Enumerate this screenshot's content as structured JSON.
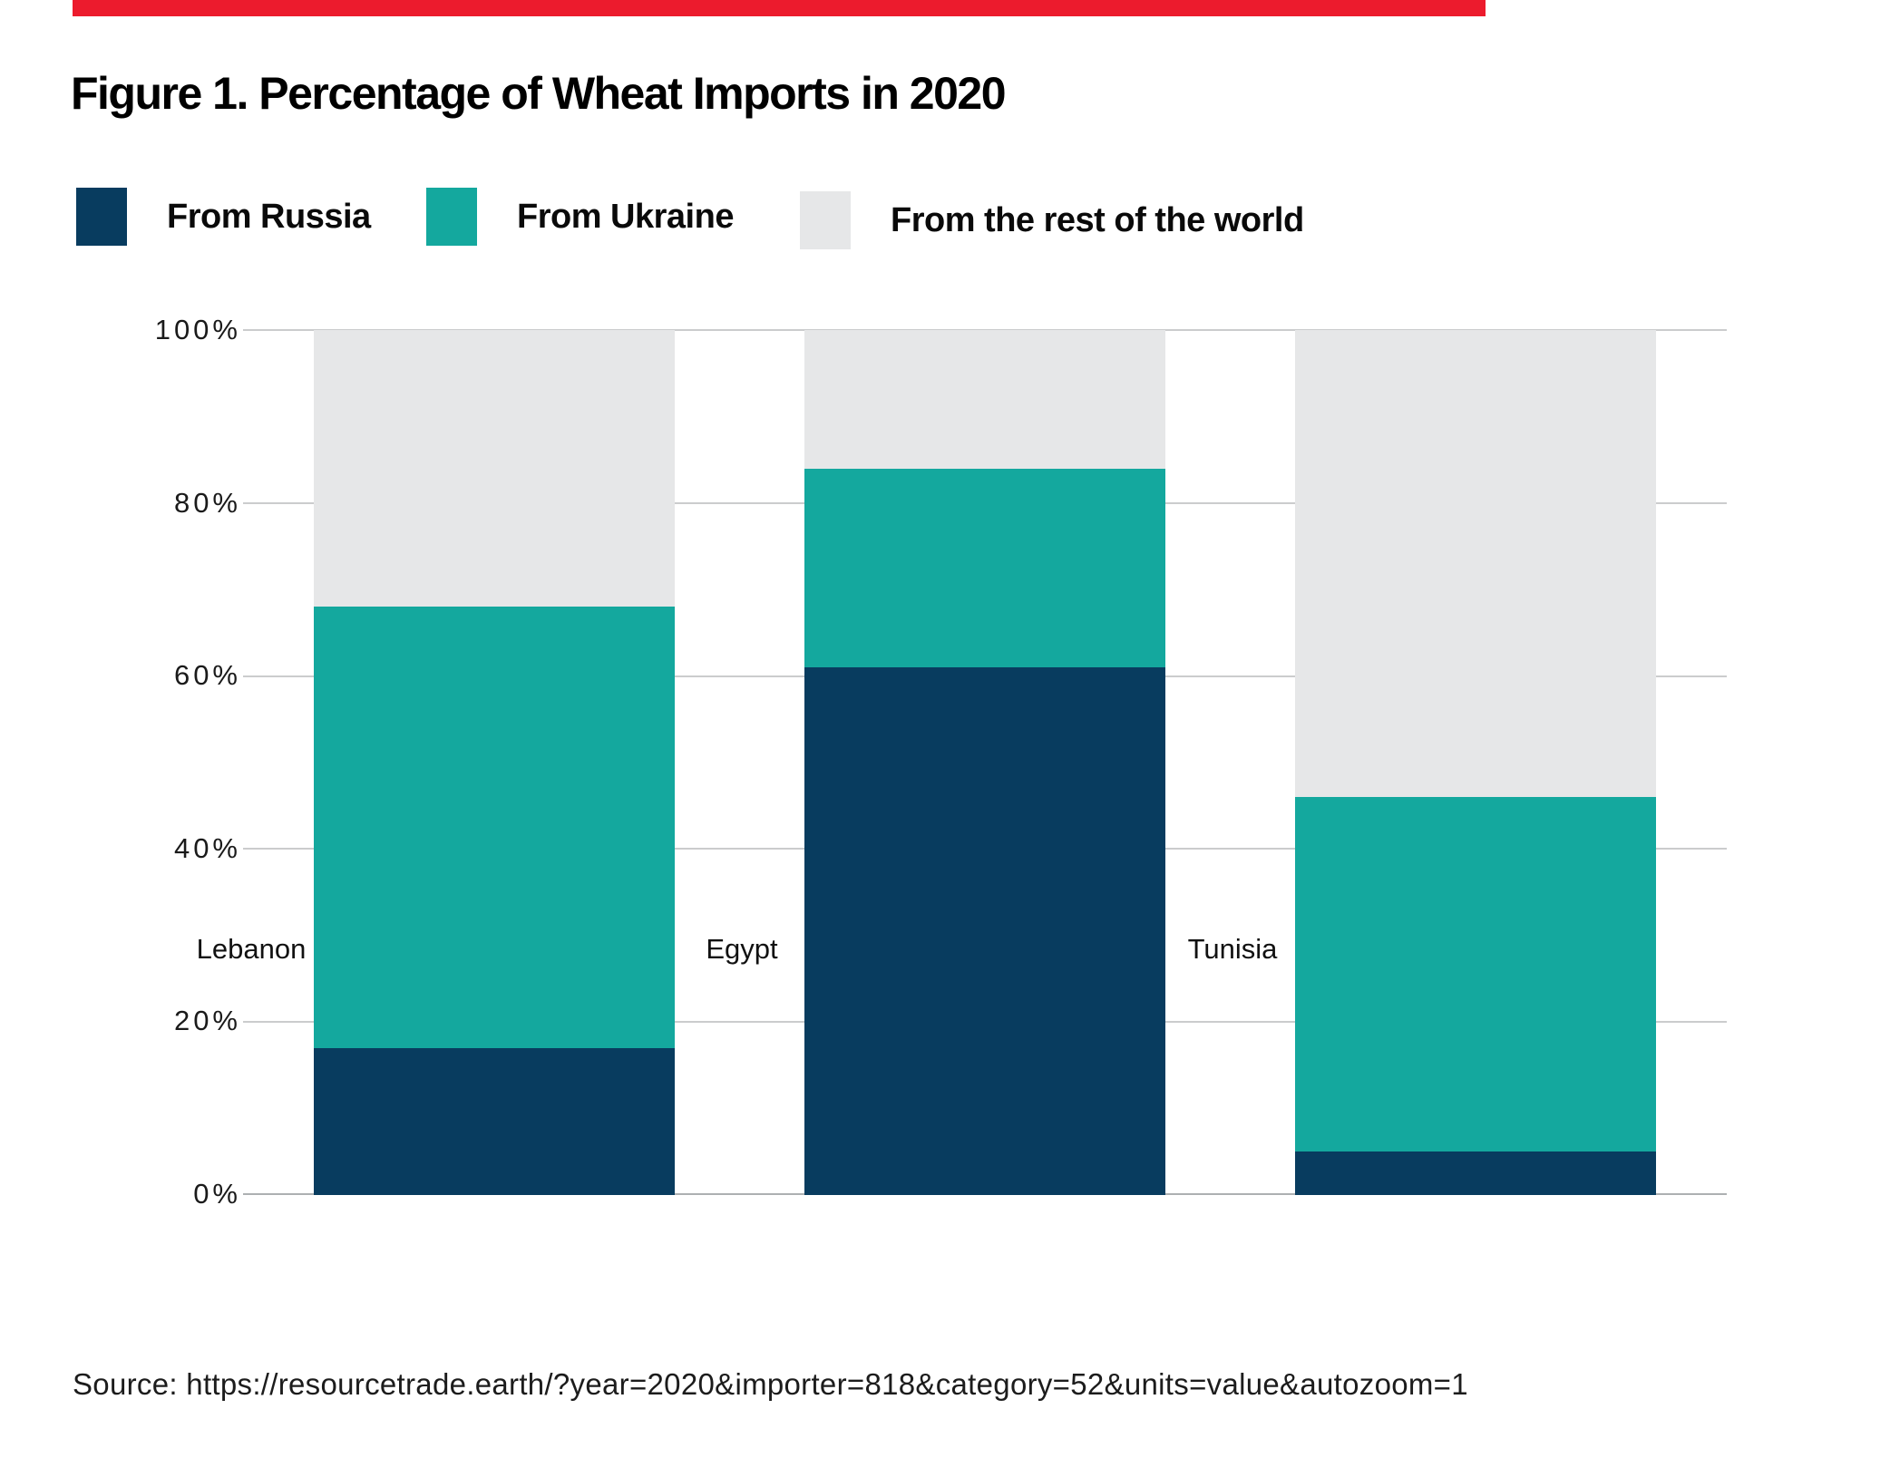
{
  "accent_color": "#ec1b2d",
  "figure": {
    "title": "Figure 1. Percentage of Wheat Imports in 2020",
    "source": "Source: https://resourcetrade.earth/?year=2020&importer=818&category=52&units=value&autozoom=1"
  },
  "legend": {
    "items": [
      {
        "label": "From Russia",
        "color": "#083c5f"
      },
      {
        "label": "From Ukraine",
        "color": "#14a89e"
      },
      {
        "label": "From the rest of the world",
        "color": "#e6e7e8"
      }
    ]
  },
  "chart_data": {
    "type": "bar",
    "stacked": true,
    "title": "Figure 1. Percentage of Wheat Imports in 2020",
    "categories": [
      "Lebanon",
      "Egypt",
      "Tunisia"
    ],
    "series": [
      {
        "name": "From Russia",
        "color": "#083c5f",
        "values": [
          17,
          61,
          5
        ]
      },
      {
        "name": "From Ukraine",
        "color": "#14a89e",
        "values": [
          51,
          23,
          41
        ]
      },
      {
        "name": "From the rest of the world",
        "color": "#e6e7e8",
        "values": [
          32,
          16,
          54
        ]
      }
    ],
    "yticks": [
      "0%",
      "20%",
      "40%",
      "60%",
      "80%",
      "100%"
    ],
    "ylim": [
      0,
      100
    ],
    "xlabel": "",
    "ylabel": "",
    "grid": true,
    "legend_position": "top"
  }
}
